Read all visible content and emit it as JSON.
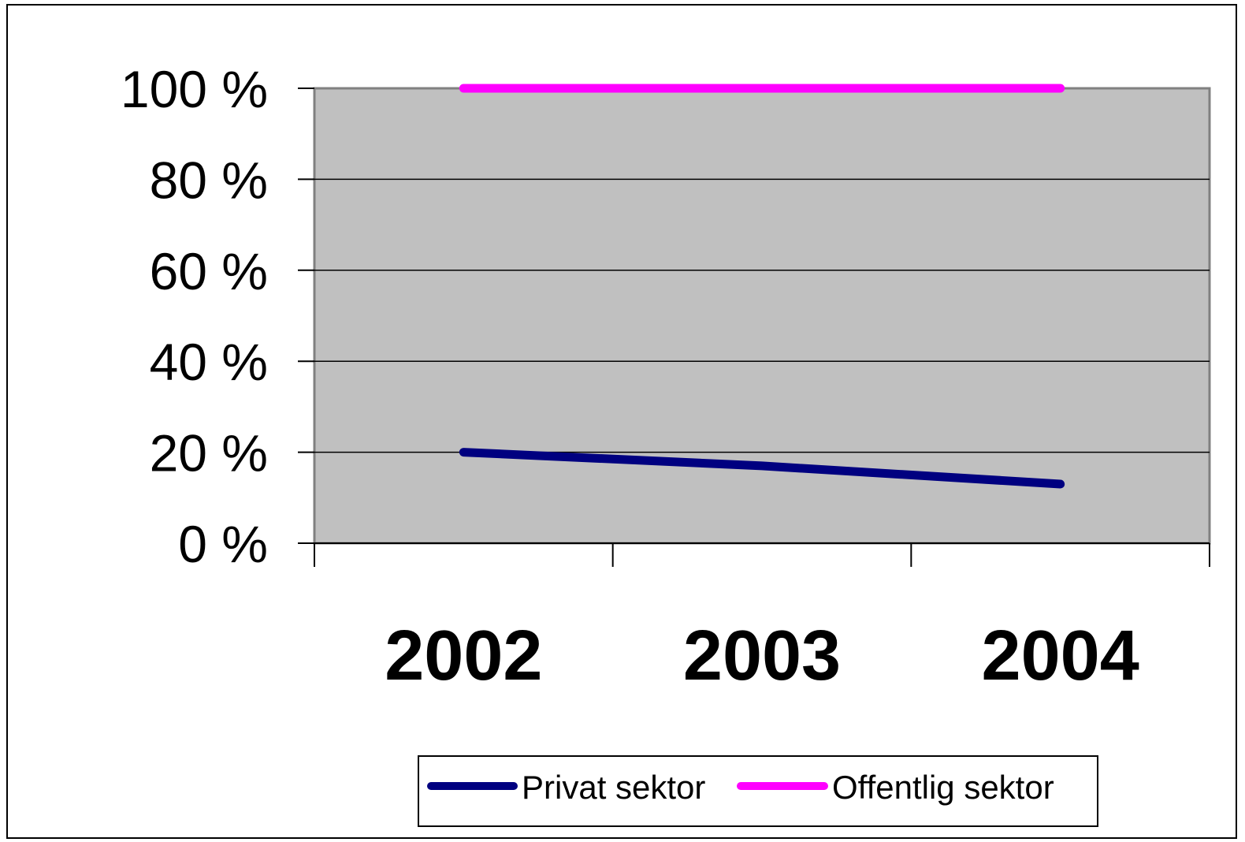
{
  "chart_data": {
    "type": "line",
    "title": "",
    "xlabel": "",
    "ylabel": "",
    "categories": [
      "2002",
      "2003",
      "2004"
    ],
    "ylim": [
      0,
      100
    ],
    "yticks": [
      "0 %",
      "20 %",
      "40 %",
      "60 %",
      "80 %",
      "100 %"
    ],
    "grid": true,
    "legend_position": "bottom",
    "plot_background": "#c0c0c0",
    "series": [
      {
        "name": "Privat sektor",
        "color": "#000080",
        "values": [
          20,
          17,
          13
        ]
      },
      {
        "name": "Offentlig sektor",
        "color": "#ff00ff",
        "values": [
          100,
          100,
          100
        ]
      }
    ]
  }
}
